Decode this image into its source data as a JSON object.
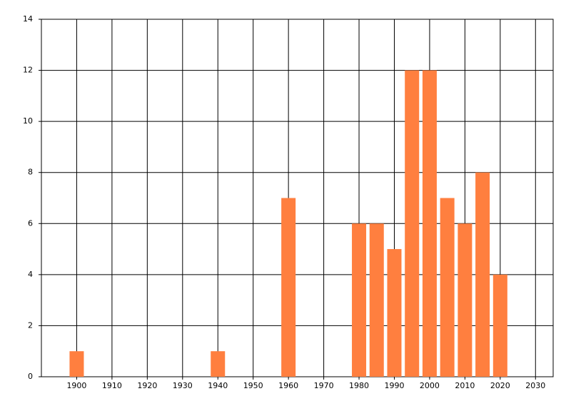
{
  "chart_data": {
    "type": "bar",
    "x": [
      1900,
      1940,
      1960,
      1980,
      1985,
      1990,
      1995,
      2000,
      2005,
      2010,
      2015,
      2020
    ],
    "values": [
      1,
      1,
      7,
      6,
      6,
      5,
      12,
      12,
      7,
      6,
      8,
      4
    ],
    "color": "#ff7f3f",
    "xlim": [
      1890,
      2035
    ],
    "xticks": [
      1900,
      1910,
      1920,
      1930,
      1940,
      1950,
      1960,
      1970,
      1980,
      1990,
      2000,
      2010,
      2020,
      2030
    ],
    "ylim": [
      0,
      14
    ],
    "yticks": [
      0,
      2,
      4,
      6,
      8,
      10,
      12,
      14
    ],
    "grid": true
  }
}
